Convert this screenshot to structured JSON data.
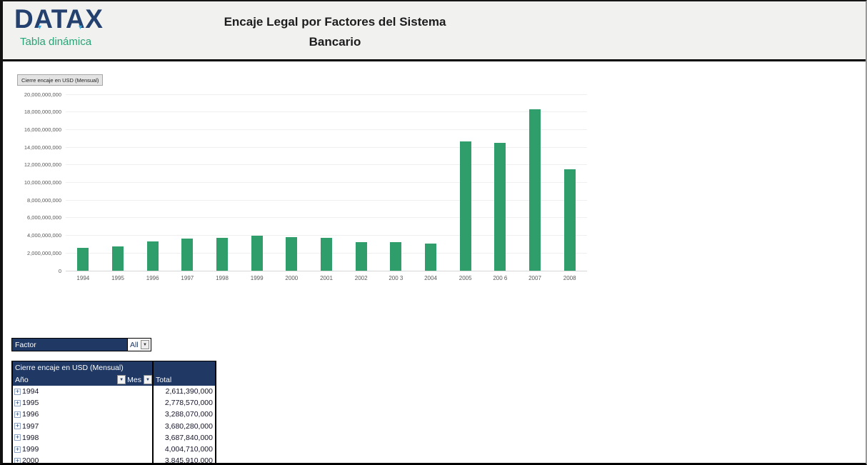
{
  "header": {
    "logo_text": "DATAX",
    "logo_subtitle": "Tabla dinámica",
    "title_line1": "Encaje Legal por Factores del Sistema",
    "title_line2": "Bancario"
  },
  "chart": {
    "field_button_label": "Cierre encaje en USD (Mensual)"
  },
  "chart_data": {
    "type": "bar",
    "title": "Cierre encaje en USD (Mensual)",
    "xlabel": "",
    "ylabel": "",
    "categories": [
      "1994",
      "1995",
      "1996",
      "1997",
      "1998",
      "1999",
      "2000",
      "2001",
      "2002",
      "2003",
      "2004",
      "2005",
      "2006",
      "2007",
      "2008"
    ],
    "xtick_labels": [
      "1994",
      "1995",
      "1996",
      "1997",
      "1998",
      "1999",
      "2000",
      "2001",
      "2002",
      "200 3",
      "2004",
      "2005",
      "200 6",
      "2007",
      "2008"
    ],
    "values": [
      2611390000,
      2778570000,
      3288070000,
      3680280000,
      3687840000,
      4004710000,
      3845910000,
      3720000000,
      3280000000,
      3220000000,
      3090000000,
      14620000000,
      14500000000,
      18280000000,
      11460000000
    ],
    "ylim": [
      0,
      20000000000
    ],
    "ytick_step": 2000000000,
    "grid": true,
    "legend": "none",
    "bar_color": "#2f9e6b"
  },
  "filter": {
    "label": "Factor",
    "value": "All",
    "dropdown_icon": "▼"
  },
  "pivot": {
    "title": "Cierre encaje en USD (Mensual)",
    "row_field": "Año",
    "col_field": "Mes",
    "total_label": "Total",
    "dropdown_icon": "▼",
    "expand_icon": "+",
    "rows": [
      {
        "year": "1994",
        "total": "2,611,390,000"
      },
      {
        "year": "1995",
        "total": "2,778,570,000"
      },
      {
        "year": "1996",
        "total": "3,288,070,000"
      },
      {
        "year": "1997",
        "total": "3,680,280,000"
      },
      {
        "year": "1998",
        "total": "3,687,840,000"
      },
      {
        "year": "1999",
        "total": "4,004,710,000"
      },
      {
        "year": "2000",
        "total": "3,845,910,000"
      }
    ]
  },
  "colors": {
    "navy": "#1f3864",
    "bar_green": "#2f9e6b",
    "logo_navy": "#24406e",
    "logo_green": "#27a376",
    "header_band": "#f1f1f0",
    "axis_text": "#595959"
  }
}
